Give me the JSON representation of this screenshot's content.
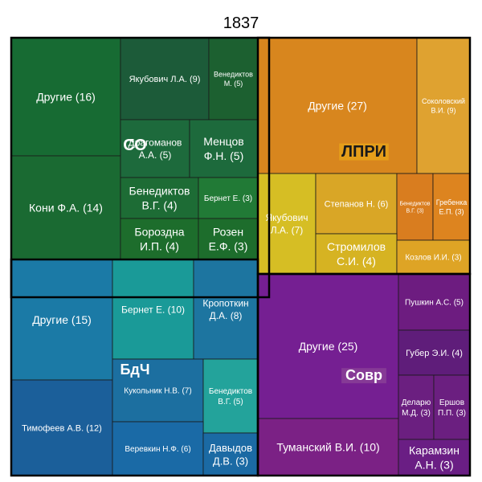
{
  "chart_data": {
    "type": "treemap",
    "title": "1837",
    "groups": [
      {
        "name": "СО",
        "items": [
          {
            "label": "Другие (16)",
            "value": 16
          },
          {
            "label": "Кони Ф.А. (14)",
            "value": 14
          },
          {
            "label": "Якубович Л.А. (9)",
            "value": 9
          },
          {
            "label": "Венедиктов М. (5)",
            "value": 5
          },
          {
            "label": "Драгоманов А.А. (5)",
            "value": 5
          },
          {
            "label": "Менцов Ф.Н. (5)",
            "value": 5
          },
          {
            "label": "Бенедиктов В.Г. (4)",
            "value": 4
          },
          {
            "label": "Бернет Е. (3)",
            "value": 3
          },
          {
            "label": "Бороздна И.П. (4)",
            "value": 4
          },
          {
            "label": "Розен Е.Ф. (3)",
            "value": 3
          }
        ]
      },
      {
        "name": "ЛПРИ",
        "items": [
          {
            "label": "Другие (27)",
            "value": 27
          },
          {
            "label": "Соколовский В.И. (9)",
            "value": 9
          },
          {
            "label": "Якубович Л.А. (7)",
            "value": 7
          },
          {
            "label": "Степанов Н. (6)",
            "value": 6
          },
          {
            "label": "Бенедиктов В.Г. (3)",
            "value": 3
          },
          {
            "label": "Гребенка Е.П. (3)",
            "value": 3
          },
          {
            "label": "Стромилов С.И. (4)",
            "value": 4
          },
          {
            "label": "Козлов И.И. (3)",
            "value": 3
          }
        ]
      },
      {
        "name": "БдЧ",
        "items": [
          {
            "label": "Другие (15)",
            "value": 15
          },
          {
            "label": "Тимофеев А.В. (12)",
            "value": 12
          },
          {
            "label": "Бернет Е. (10)",
            "value": 10
          },
          {
            "label": "Кропоткин Д.А. (8)",
            "value": 8
          },
          {
            "label": "Кукольник Н.В. (7)",
            "value": 7
          },
          {
            "label": "Бенедиктов В.Г. (5)",
            "value": 5
          },
          {
            "label": "Веревкин Н.Ф. (6)",
            "value": 6
          },
          {
            "label": "Давыдов Д.В. (3)",
            "value": 3
          }
        ]
      },
      {
        "name": "Совр",
        "items": [
          {
            "label": "Другие (25)",
            "value": 25
          },
          {
            "label": "Туманский В.И. (10)",
            "value": 10
          },
          {
            "label": "Пушкин А.С. (5)",
            "value": 5
          },
          {
            "label": "Губер Э.И. (4)",
            "value": 4
          },
          {
            "label": "Деларю М.Д. (3)",
            "value": 3
          },
          {
            "label": "Ершов П.П. (3)",
            "value": 3
          },
          {
            "label": "Карамзин А.Н. (3)",
            "value": 3
          }
        ]
      }
    ]
  }
}
